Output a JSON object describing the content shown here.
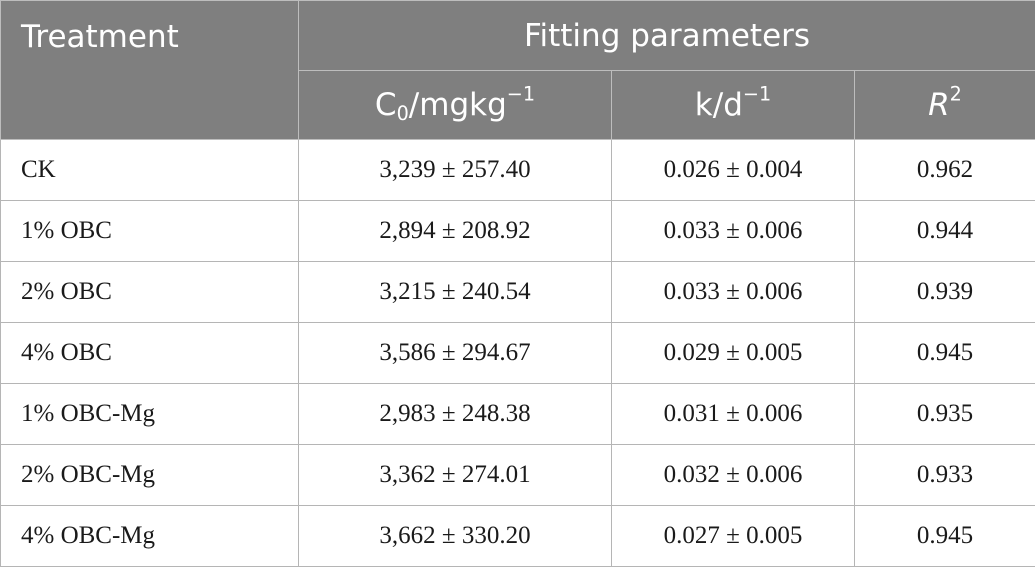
{
  "header": {
    "treatment": "Treatment",
    "group": "Fitting parameters",
    "c0_base": "C",
    "c0_sub": "0",
    "c0_unit": "/mgkg",
    "c0_sup": "−1",
    "k_base": "k/d",
    "k_sup": "−1",
    "r2_base": "R",
    "r2_sup": "2"
  },
  "rows": [
    {
      "treatment": "CK",
      "c0": "3,239 ± 257.40",
      "k": "0.026 ± 0.004",
      "r2": "0.962"
    },
    {
      "treatment": "1% OBC",
      "c0": "2,894 ± 208.92",
      "k": "0.033 ± 0.006",
      "r2": "0.944"
    },
    {
      "treatment": "2% OBC",
      "c0": "3,215 ± 240.54",
      "k": "0.033 ± 0.006",
      "r2": "0.939"
    },
    {
      "treatment": "4% OBC",
      "c0": "3,586 ± 294.67",
      "k": "0.029 ± 0.005",
      "r2": "0.945"
    },
    {
      "treatment": "1% OBC-Mg",
      "c0": "2,983 ± 248.38",
      "k": "0.031 ± 0.006",
      "r2": "0.935"
    },
    {
      "treatment": "2% OBC-Mg",
      "c0": "3,362 ± 274.01",
      "k": "0.032 ± 0.006",
      "r2": "0.933"
    },
    {
      "treatment": "4% OBC-Mg",
      "c0": "3,662 ± 330.20",
      "k": "0.027 ± 0.005",
      "r2": "0.945"
    }
  ]
}
